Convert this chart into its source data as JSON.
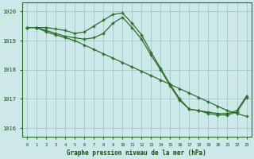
{
  "background_color": "#cce8e8",
  "plot_bg_color": "#cce8e8",
  "grid_color": "#9bbfbf",
  "line_color": "#2d6e2d",
  "marker_color": "#2d6e2d",
  "title": "Graphe pression niveau de la mer (hPa)",
  "ylim": [
    1015.7,
    1020.3
  ],
  "xlim": [
    -0.5,
    23.5
  ],
  "yticks": [
    1016,
    1017,
    1018,
    1019,
    1020
  ],
  "xticks": [
    0,
    1,
    2,
    3,
    4,
    5,
    6,
    7,
    8,
    9,
    10,
    11,
    12,
    13,
    14,
    15,
    16,
    17,
    18,
    19,
    20,
    21,
    22,
    23
  ],
  "series": [
    {
      "x": [
        0,
        1,
        2,
        3,
        4,
        5,
        6,
        7,
        8,
        9,
        10,
        11,
        12,
        13,
        14,
        15,
        16,
        17,
        18,
        19,
        20,
        21,
        22,
        23
      ],
      "y": [
        1019.45,
        1019.45,
        1019.45,
        1019.4,
        1019.35,
        1019.25,
        1019.3,
        1019.5,
        1019.7,
        1019.9,
        1019.95,
        1019.6,
        1019.2,
        1018.6,
        1018.05,
        1017.5,
        1017.0,
        1016.65,
        1016.6,
        1016.55,
        1016.5,
        1016.5,
        1016.6,
        1017.1
      ]
    },
    {
      "x": [
        0,
        1,
        2,
        3,
        4,
        5,
        6,
        7,
        8,
        9,
        10,
        11,
        12,
        13,
        14,
        15,
        16,
        17,
        18,
        19,
        20,
        21,
        22,
        23
      ],
      "y": [
        1019.45,
        1019.45,
        1019.3,
        1019.2,
        1019.1,
        1019.0,
        1018.85,
        1018.7,
        1018.55,
        1018.4,
        1018.25,
        1018.1,
        1017.95,
        1017.8,
        1017.65,
        1017.5,
        1017.35,
        1017.2,
        1017.05,
        1016.9,
        1016.75,
        1016.6,
        1016.5,
        1016.4
      ]
    },
    {
      "x": [
        0,
        1,
        2,
        3,
        4,
        5,
        6,
        7,
        8,
        9,
        10,
        11,
        12,
        13,
        14,
        15,
        16,
        17,
        18,
        19,
        20,
        21,
        22,
        23
      ],
      "y": [
        1019.45,
        1019.45,
        1019.35,
        1019.25,
        1019.15,
        1019.1,
        1019.05,
        1019.1,
        1019.25,
        1019.6,
        1019.8,
        1019.45,
        1019.05,
        1018.5,
        1018.0,
        1017.45,
        1016.95,
        1016.65,
        1016.6,
        1016.5,
        1016.45,
        1016.45,
        1016.55,
        1017.05
      ]
    }
  ]
}
